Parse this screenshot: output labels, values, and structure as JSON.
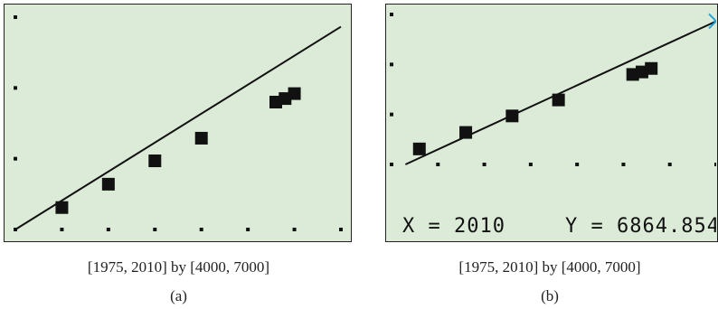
{
  "chart_data": [
    {
      "type": "scatter",
      "panel_label": "(a)",
      "window_caption": "[1975, 2010] by [4000, 7000]",
      "xlim": [
        1975,
        2010
      ],
      "ylim": [
        4000,
        7000
      ],
      "x_tick_step": 5,
      "y_tick_step": 1000,
      "points": [
        {
          "x": 1980,
          "y": 4310
        },
        {
          "x": 1985,
          "y": 4640
        },
        {
          "x": 1990,
          "y": 4970
        },
        {
          "x": 1995,
          "y": 5290
        },
        {
          "x": 2003,
          "y": 5800
        },
        {
          "x": 2004,
          "y": 5850
        },
        {
          "x": 2005,
          "y": 5920
        }
      ],
      "regression": {
        "x0": 1975,
        "y0": 4000,
        "x1": 2010,
        "y1": 6864.854
      },
      "colors": {
        "screen": "#dcebd8",
        "marks": "#111111"
      }
    },
    {
      "type": "scatter",
      "panel_label": "(b)",
      "window_caption": "[1975, 2010] by [4000, 7000]",
      "xlim": [
        1975,
        2010
      ],
      "ylim": [
        4000,
        7000
      ],
      "x_tick_step": 5,
      "y_tick_step": 1000,
      "points": [
        {
          "x": 1978,
          "y": 4310
        },
        {
          "x": 1983,
          "y": 4640
        },
        {
          "x": 1988,
          "y": 4970
        },
        {
          "x": 1993,
          "y": 5290
        },
        {
          "x": 2001,
          "y": 5800
        },
        {
          "x": 2002,
          "y": 5850
        },
        {
          "x": 2003,
          "y": 5920
        }
      ],
      "regression": {
        "x0": 1976.5,
        "y0": 4000,
        "x1": 2010,
        "y1": 6864.854
      },
      "trace_cursor": {
        "x": 2010,
        "y": 6864.854,
        "x_readout": "X = 2010",
        "y_readout": "Y = 6864.854"
      },
      "colors": {
        "screen": "#dcebd8",
        "marks": "#111111",
        "cursor": "#1fa3d9"
      }
    }
  ]
}
